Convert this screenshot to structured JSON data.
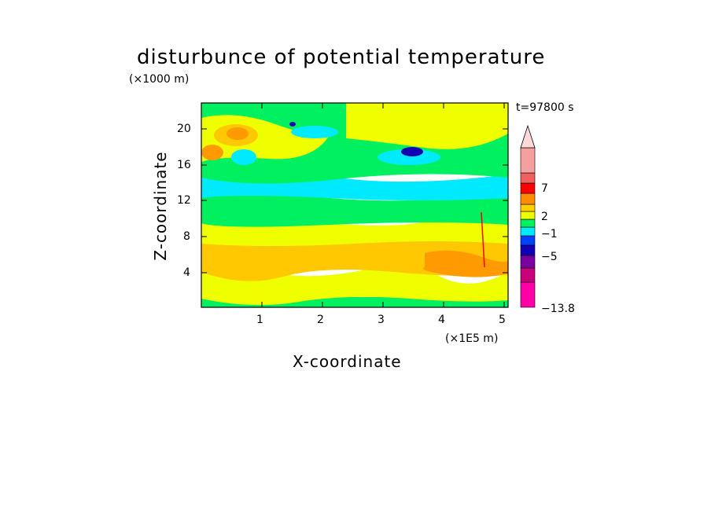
{
  "chart_data": {
    "type": "heatmap",
    "title": "disturbunce of potential temperature",
    "xlabel": "X-coordinate",
    "ylabel": "Z-coordinate",
    "x_unit": "(×1E5 m)",
    "y_unit": "(×1000 m)",
    "time_label": "t=97800 s",
    "xlim": [
      0,
      5.1
    ],
    "ylim": [
      0.4,
      23
    ],
    "x_ticks": [
      "1",
      "2",
      "3",
      "4",
      "5"
    ],
    "y_ticks": [
      "4",
      "8",
      "12",
      "16",
      "20"
    ],
    "colorbar": {
      "labels": [
        "7",
        "2",
        "−1",
        "−5",
        "−13.8"
      ],
      "colors": [
        "#ff00a8",
        "#c8007a",
        "#7a00a0",
        "#1200b4",
        "#0040ff",
        "#00eaff",
        "#00f060",
        "#f0ff00",
        "#ffd000",
        "#ff8c00",
        "#ff0000",
        "#f06060",
        "#f4a0a0",
        "#ffd8d8"
      ],
      "extend": "max"
    },
    "field_bands": [
      {
        "z_range": [
          0.4,
          1.5
        ],
        "level": "green"
      },
      {
        "z_range": [
          1.5,
          4.5
        ],
        "level": "yellow"
      },
      {
        "z_range": [
          4.5,
          8.0
        ],
        "level": "orange"
      },
      {
        "z_range": [
          8.0,
          10.0
        ],
        "level": "yellow"
      },
      {
        "z_range": [
          10.0,
          12.0
        ],
        "level": "green"
      },
      {
        "z_range": [
          12.0,
          15.0
        ],
        "level": "cyan"
      },
      {
        "z_range": [
          15.0,
          23.0
        ],
        "level": "green-yellow"
      }
    ]
  },
  "colors": {
    "green": "#00f060",
    "yellow": "#f0ff00",
    "orange": "#ffc800",
    "darkorange": "#ff9a00",
    "red": "#ff0000",
    "cyan": "#00eaff",
    "blue": "#1200b4",
    "axis": "#000000"
  }
}
